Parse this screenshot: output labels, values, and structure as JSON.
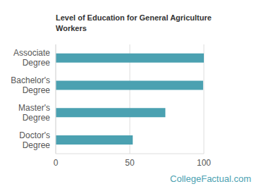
{
  "chart_data": {
    "type": "bar",
    "title": "Level of Education for General Agriculture Workers",
    "categories": [
      "Associate Degree",
      "Bachelor's Degree",
      "Master's Degree",
      "Doctor's Degree"
    ],
    "values": [
      100,
      99.5,
      74,
      52
    ],
    "color": "#4ba1b1",
    "orientation": "horizontal",
    "xlim": [
      0,
      100
    ],
    "xticks": [
      0,
      50,
      100
    ],
    "grid": true,
    "annotations": [
      "CollegeFactual.com"
    ]
  }
}
